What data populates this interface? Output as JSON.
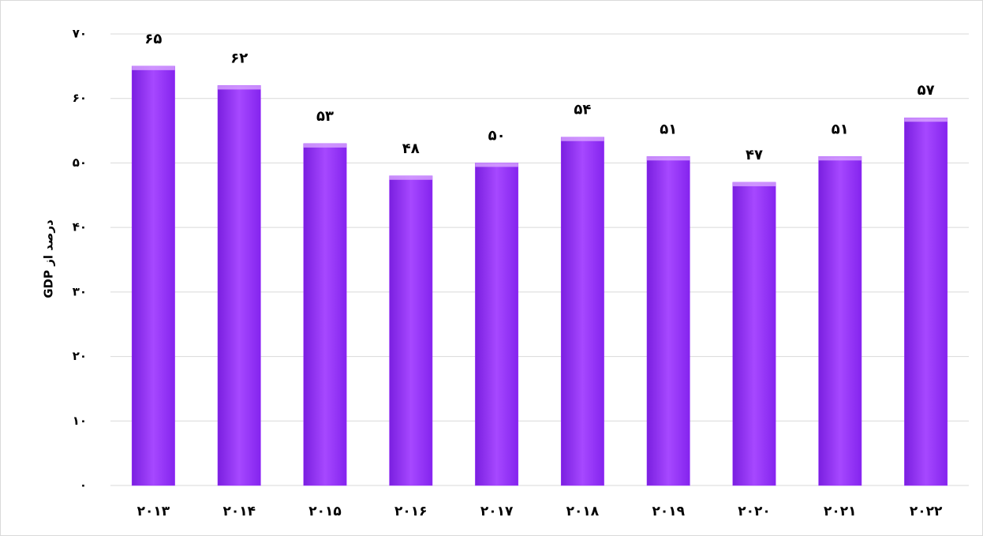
{
  "chart_data": {
    "type": "bar",
    "y_label": "درصد از GDP",
    "categories": [
      "۲۰۱۳",
      "۲۰۱۴",
      "۲۰۱۵",
      "۲۰۱۶",
      "۲۰۱۷",
      "۲۰۱۸",
      "۲۰۱۹",
      "۲۰۲۰",
      "۲۰۲۱",
      "۲۰۲۲"
    ],
    "values": [
      65,
      62,
      53,
      48,
      50,
      54,
      51,
      47,
      51,
      57
    ],
    "value_labels": [
      "۶۵",
      "۶۲",
      "۵۳",
      "۴۸",
      "۵۰",
      "۵۴",
      "۵۱",
      "۴۷",
      "۵۱",
      "۵۷"
    ],
    "color": "#9b30ff",
    "ylim": [
      0,
      70
    ],
    "yticks": [
      {
        "value": 0,
        "label": "۰"
      },
      {
        "value": 10,
        "label": "۱۰"
      },
      {
        "value": 20,
        "label": "۲۰"
      },
      {
        "value": 30,
        "label": "۳۰"
      },
      {
        "value": 40,
        "label": "۴۰"
      },
      {
        "value": 50,
        "label": "۵۰"
      },
      {
        "value": 60,
        "label": "۶۰"
      },
      {
        "value": 70,
        "label": "۷۰"
      }
    ],
    "grid": true
  }
}
